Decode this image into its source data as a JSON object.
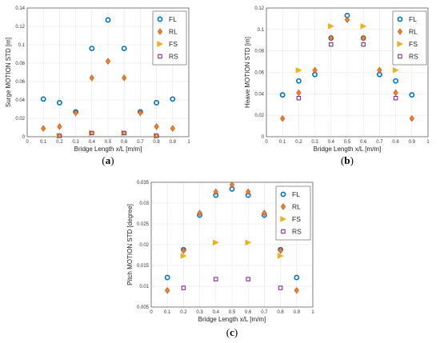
{
  "colors": {
    "FL": "#0072BD",
    "RL": "#D95319",
    "RL_fill": "#E8862E",
    "FS": "#EDB120",
    "RS": "#7E2F8E",
    "grid": "#e6e6e6",
    "axis": "#333333"
  },
  "chart_data": [
    {
      "type": "scatter",
      "panel_label": "a",
      "caption": "(a)",
      "xlabel": "Bridge Length x/L [m/m]",
      "ylabel": "Surge MOTION STD [m]",
      "xlim": [
        0,
        1
      ],
      "ylim": [
        0,
        0.14
      ],
      "xticks": [
        "0",
        "0.1",
        "0.2",
        "0.3",
        "0.4",
        "0.5",
        "0.6",
        "0.7",
        "0.8",
        "0.9",
        "1"
      ],
      "yticks": [
        "0",
        "0.02",
        "0.04",
        "0.06",
        "0.08",
        "0.1",
        "0.12",
        "0.14"
      ],
      "grid": true,
      "legend_position": "top-right",
      "series": [
        {
          "name": "FL",
          "marker": "circle",
          "x": [
            0.1,
            0.2,
            0.3,
            0.4,
            0.5,
            0.6,
            0.7,
            0.8,
            0.9
          ],
          "y": [
            0.041,
            0.037,
            0.027,
            0.096,
            0.127,
            0.096,
            0.027,
            0.037,
            0.041
          ]
        },
        {
          "name": "RL",
          "marker": "diamond",
          "x": [
            0.1,
            0.2,
            0.3,
            0.4,
            0.5,
            0.6,
            0.7,
            0.8,
            0.9
          ],
          "y": [
            0.009,
            0.011,
            0.026,
            0.064,
            0.082,
            0.064,
            0.026,
            0.011,
            0.009
          ]
        },
        {
          "name": "FS",
          "marker": "triangle-right",
          "x": [
            0.2,
            0.4,
            0.6,
            0.8
          ],
          "y": [
            0.001,
            0.004,
            0.004,
            0.001
          ]
        },
        {
          "name": "RS",
          "marker": "square",
          "x": [
            0.2,
            0.4,
            0.6,
            0.8
          ],
          "y": [
            0.001,
            0.004,
            0.004,
            0.001
          ]
        }
      ]
    },
    {
      "type": "scatter",
      "panel_label": "b",
      "caption": "(b)",
      "xlabel": "Bridge Length x/L [m/m]",
      "ylabel": "Heave MOTION STD [m]",
      "xlim": [
        0,
        1
      ],
      "ylim": [
        0,
        0.12
      ],
      "xticks": [
        "0",
        "0.1",
        "0.2",
        "0.3",
        "0.4",
        "0.5",
        "0.6",
        "0.7",
        "0.8",
        "0.9",
        "1"
      ],
      "yticks": [
        "0",
        "0.02",
        "0.04",
        "0.06",
        "0.08",
        "0.1",
        "0.12"
      ],
      "grid": true,
      "legend_position": "top-right",
      "series": [
        {
          "name": "FL",
          "marker": "circle",
          "x": [
            0.1,
            0.2,
            0.3,
            0.4,
            0.5,
            0.6,
            0.7,
            0.8,
            0.9
          ],
          "y": [
            0.039,
            0.052,
            0.058,
            0.092,
            0.113,
            0.092,
            0.058,
            0.052,
            0.039
          ]
        },
        {
          "name": "RL",
          "marker": "diamond",
          "x": [
            0.1,
            0.2,
            0.3,
            0.4,
            0.5,
            0.6,
            0.7,
            0.8,
            0.9
          ],
          "y": [
            0.017,
            0.041,
            0.062,
            0.092,
            0.109,
            0.092,
            0.062,
            0.041,
            0.017
          ]
        },
        {
          "name": "FS",
          "marker": "triangle-right",
          "x": [
            0.2,
            0.4,
            0.6,
            0.8
          ],
          "y": [
            0.062,
            0.103,
            0.103,
            0.062
          ]
        },
        {
          "name": "RS",
          "marker": "square",
          "x": [
            0.2,
            0.4,
            0.6,
            0.8
          ],
          "y": [
            0.036,
            0.086,
            0.086,
            0.036
          ]
        }
      ]
    },
    {
      "type": "scatter",
      "panel_label": "c",
      "caption": "(c)",
      "xlabel": "Bridge Length x/L [m/m]",
      "ylabel": "Pitch MOTION STD [degree]",
      "xlim": [
        0,
        1
      ],
      "ylim": [
        0.005,
        0.035
      ],
      "xticks": [
        "0",
        "0.1",
        "0.2",
        "0.3",
        "0.4",
        "0.5",
        "0.6",
        "0.7",
        "0.8",
        "0.9",
        "1"
      ],
      "yticks": [
        "0.005",
        "0.01",
        "0.015",
        "0.02",
        "0.025",
        "0.03",
        "0.035"
      ],
      "grid": true,
      "legend_position": "top-right",
      "series": [
        {
          "name": "FL",
          "marker": "circle",
          "x": [
            0.1,
            0.2,
            0.3,
            0.4,
            0.5,
            0.6,
            0.7,
            0.8,
            0.9
          ],
          "y": [
            0.0121,
            0.0188,
            0.0271,
            0.0319,
            0.0334,
            0.0319,
            0.0271,
            0.0188,
            0.0121
          ]
        },
        {
          "name": "RL",
          "marker": "diamond",
          "x": [
            0.1,
            0.2,
            0.3,
            0.4,
            0.5,
            0.6,
            0.7,
            0.8,
            0.9
          ],
          "y": [
            0.009,
            0.0186,
            0.0276,
            0.0327,
            0.0344,
            0.0327,
            0.0276,
            0.0186,
            0.009
          ]
        },
        {
          "name": "FS",
          "marker": "triangle-right",
          "x": [
            0.2,
            0.4,
            0.6,
            0.8
          ],
          "y": [
            0.0173,
            0.0205,
            0.0205,
            0.0173
          ]
        },
        {
          "name": "RS",
          "marker": "square",
          "x": [
            0.2,
            0.4,
            0.6,
            0.8
          ],
          "y": [
            0.0096,
            0.0117,
            0.0117,
            0.0096
          ]
        }
      ]
    }
  ]
}
